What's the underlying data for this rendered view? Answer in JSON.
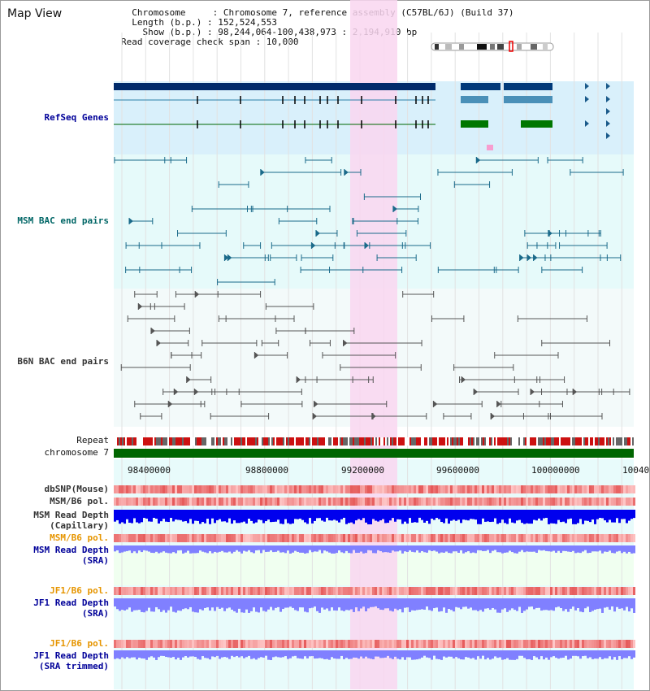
{
  "header": {
    "title": "Map View",
    "info_lines": [
      "  Chromosome     : Chromosome 7, reference assembly (C57BL/6J) (Build 37)",
      "  Length (b.p.) : 152,524,553",
      "    Show (b.p.) : 98,244,064-100,438,973 : 2,194,910 bp",
      "Read coverage check span : 10,000"
    ]
  },
  "tracks": {
    "refseq": "RefSeq Genes",
    "msm_bac": "MSM BAC end pairs",
    "b6n_bac": "B6N BAC end pairs",
    "repeat": "Repeat",
    "chromosome": "chromosome 7",
    "dbsnp": "dbSNP(Mouse)",
    "msm_b6_pol_1": "MSM/B6 pol.",
    "msm_read_depth_cap_1": "MSM Read Depth",
    "msm_read_depth_cap_2": "(Capillary)",
    "msm_b6_pol_2": "MSM/B6 pol.",
    "msm_read_depth_sra_1": "MSM Read Depth",
    "msm_read_depth_sra_2": "(SRA)",
    "jf1_b6_pol_1": "JF1/B6 pol.",
    "jf1_read_depth_sra_1": "JF1 Read Depth",
    "jf1_read_depth_sra_2": "(SRA)",
    "jf1_b6_pol_2": "JF1/B6 pol.",
    "jf1_read_depth_trim_1": "JF1 Read Depth",
    "jf1_read_depth_trim_2": "(SRA trimmed)"
  },
  "axis": {
    "ticks": [
      "98400000",
      "98800000",
      "99200000",
      "99600000",
      "100000000",
      "10040"
    ]
  },
  "colors": {
    "navy_label": "#000099",
    "teal_label": "#006666",
    "gray_label": "#333333",
    "orange_label": "#e69500",
    "highlight": "#f9d6f0",
    "refseq_bg": "#d9f0fb",
    "bac_bg": "#e6fafa",
    "depth_blue": "#0000ee",
    "depth_light": "#8080ff"
  }
}
